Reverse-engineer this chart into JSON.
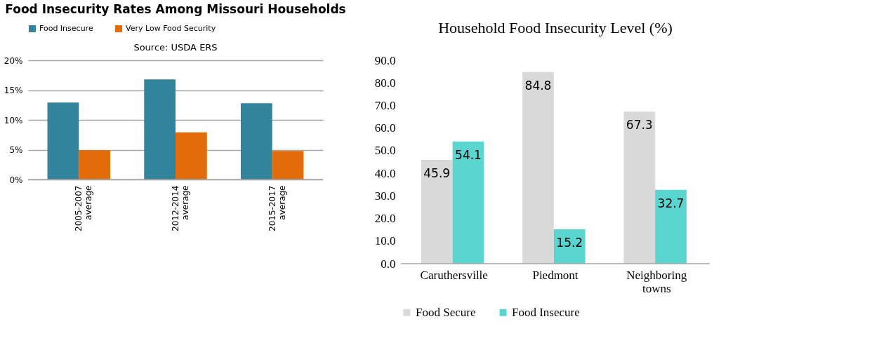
{
  "chart_data": [
    {
      "type": "bar",
      "title": "Food Insecurity Rates Among Missouri Households",
      "annotations": [
        "Source: USDA ERS"
      ],
      "categories": [
        "2005-2007 average",
        "2012-2014 average",
        "2015-2017 average"
      ],
      "series": [
        {
          "name": "Food Insecure",
          "color": "#31849b",
          "values": [
            12.9,
            16.8,
            12.8
          ]
        },
        {
          "name": "Very Low Food Security",
          "color": "#e36c0a",
          "values": [
            4.9,
            7.9,
            4.8
          ]
        }
      ],
      "ylim": [
        0,
        20
      ],
      "yticks": [
        {
          "value": 0,
          "label": "0%"
        },
        {
          "value": 5,
          "label": "5%"
        },
        {
          "value": 10,
          "label": "10%"
        },
        {
          "value": 15,
          "label": "15%"
        },
        {
          "value": 20,
          "label": "20%"
        }
      ],
      "grid": "y",
      "legend": "top"
    },
    {
      "type": "bar",
      "title": "Household Food Insecurity Level (%)",
      "categories": [
        "Caruthersville",
        "Piedmont",
        "Neighboring towns"
      ],
      "series": [
        {
          "name": "Food Secure",
          "color": "#d9d9d9",
          "values": [
            45.9,
            84.8,
            67.3
          ]
        },
        {
          "name": "Food Insecure",
          "color": "#5bd5cf",
          "values": [
            54.1,
            15.2,
            32.7
          ]
        }
      ],
      "ylim": [
        0,
        90
      ],
      "yticks": [
        {
          "value": 0,
          "label": "0.0"
        },
        {
          "value": 10,
          "label": "10.0"
        },
        {
          "value": 20,
          "label": "20.0"
        },
        {
          "value": 30,
          "label": "30.0"
        },
        {
          "value": 40,
          "label": "40.0"
        },
        {
          "value": 50,
          "label": "50.0"
        },
        {
          "value": 60,
          "label": "60.0"
        },
        {
          "value": 70,
          "label": "70.0"
        },
        {
          "value": 80,
          "label": "80.0"
        },
        {
          "value": 90,
          "label": "90.0"
        }
      ],
      "data_labels": true,
      "legend": "bottom"
    }
  ]
}
